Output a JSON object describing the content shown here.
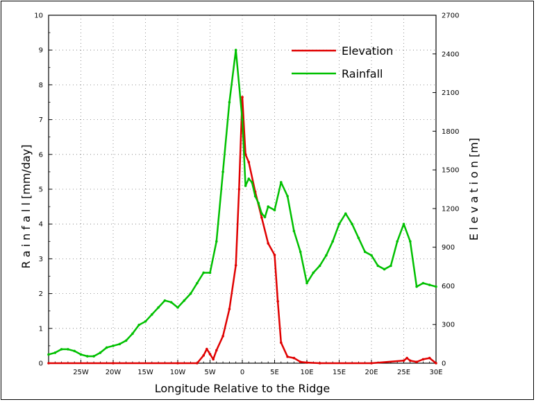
{
  "chart_data": {
    "type": "line",
    "xlabel": "Longitude Relative to the Ridge",
    "ylabel_left": "R a i n f a l l  [mm/day]",
    "ylabel_right": "E l e v a t i o n  [m]",
    "xlim": [
      -30,
      30
    ],
    "ylim_left": [
      0,
      10
    ],
    "ylim_right": [
      0,
      2700
    ],
    "x_ticks": [
      -25,
      -20,
      -15,
      -10,
      -5,
      0,
      5,
      10,
      15,
      20,
      25,
      30
    ],
    "x_tick_labels": [
      "25W",
      "20W",
      "15W",
      "10W",
      "5W",
      "0",
      "5E",
      "10E",
      "15E",
      "20E",
      "25E",
      "30E"
    ],
    "y_ticks_left": [
      0,
      1,
      2,
      3,
      4,
      5,
      6,
      7,
      8,
      9,
      10
    ],
    "y_tick_labels_left": [
      "0",
      "1",
      "2",
      "3",
      "4",
      "5",
      "6",
      "7",
      "8",
      "9",
      "10"
    ],
    "y_ticks_right": [
      0,
      300,
      600,
      900,
      1200,
      1500,
      1800,
      2100,
      2400,
      2700
    ],
    "y_tick_labels_right": [
      "0",
      "300",
      "600",
      "900",
      "1200",
      "1500",
      "1800",
      "2100",
      "2400",
      "2700"
    ],
    "grid": true,
    "legend_position": "top-right",
    "series": [
      {
        "name": "Elevation",
        "color": "#e00000",
        "axis": "right",
        "x": [
          -30,
          -20,
          -10,
          -7,
          -6,
          -5.5,
          -5,
          -4.5,
          -4,
          -3,
          -2,
          -1,
          -0.5,
          0,
          0.5,
          1,
          2,
          3,
          4,
          5,
          5.5,
          6,
          7,
          8,
          9,
          10,
          12,
          20,
          25,
          25.5,
          26,
          27,
          28,
          29,
          30
        ],
        "y": [
          0,
          0,
          0,
          0,
          60,
          110,
          70,
          30,
          100,
          210,
          420,
          760,
          1350,
          2065,
          1620,
          1560,
          1330,
          1130,
          930,
          840,
          480,
          160,
          50,
          40,
          10,
          5,
          0,
          0,
          20,
          40,
          20,
          10,
          30,
          40,
          0
        ]
      },
      {
        "name": "Rainfall",
        "color": "#00c000",
        "axis": "left",
        "x": [
          -30,
          -29,
          -28,
          -27,
          -26,
          -25,
          -24,
          -23,
          -22,
          -21,
          -20,
          -19,
          -18,
          -17,
          -16,
          -15,
          -14,
          -13,
          -12,
          -11,
          -10,
          -9,
          -8,
          -7,
          -6,
          -5,
          -4,
          -3,
          -2,
          -1,
          0,
          0.5,
          1,
          1.5,
          2,
          2.5,
          3,
          3.5,
          4,
          5,
          6,
          7,
          8,
          9,
          10,
          11,
          12,
          13,
          14,
          15,
          16,
          17,
          18,
          19,
          20,
          21,
          22,
          23,
          24,
          25,
          26,
          27,
          28,
          29,
          30
        ],
        "y": [
          0.25,
          0.3,
          0.4,
          0.4,
          0.35,
          0.25,
          0.2,
          0.2,
          0.3,
          0.45,
          0.5,
          0.55,
          0.65,
          0.85,
          1.1,
          1.2,
          1.4,
          1.6,
          1.8,
          1.75,
          1.6,
          1.8,
          2.0,
          2.3,
          2.6,
          2.6,
          3.5,
          5.5,
          7.5,
          9.0,
          7.0,
          5.1,
          5.3,
          5.2,
          4.8,
          4.6,
          4.3,
          4.2,
          4.5,
          4.4,
          5.2,
          4.8,
          3.8,
          3.2,
          2.3,
          2.6,
          2.8,
          3.1,
          3.5,
          4.0,
          4.3,
          4.0,
          3.6,
          3.2,
          3.1,
          2.8,
          2.7,
          2.8,
          3.5,
          4.0,
          3.5,
          2.2,
          2.3,
          2.25,
          2.2
        ]
      }
    ]
  }
}
